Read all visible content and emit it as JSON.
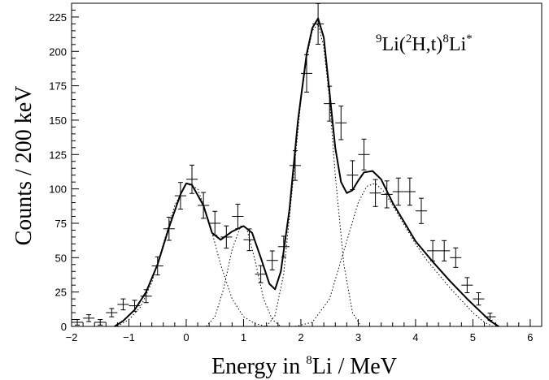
{
  "chart_data": {
    "type": "scatter",
    "xlabel": {
      "prefix": "Energy in ",
      "sup": "8",
      "suffix": "Li / MeV"
    },
    "ylabel": "Counts / 200 keV",
    "annotation": {
      "sup1": "9",
      "t1": "Li(",
      "sup2": "2",
      "t2": "H,t)",
      "sup3": "8",
      "t3": "Li",
      "sup4": "*"
    },
    "xlim": [
      -2,
      6.2
    ],
    "ylim": [
      0,
      235
    ],
    "xticks": [
      -2,
      -1,
      0,
      1,
      2,
      3,
      4,
      5,
      6
    ],
    "yticks": [
      0,
      25,
      50,
      75,
      100,
      125,
      150,
      175,
      200,
      225
    ],
    "grid": false,
    "series": [
      {
        "kind": "data-with-errorbars",
        "x": [
          -1.9,
          -1.7,
          -1.5,
          -1.3,
          -1.1,
          -0.9,
          -0.7,
          -0.5,
          -0.3,
          -0.1,
          0.1,
          0.3,
          0.5,
          0.7,
          0.9,
          1.1,
          1.3,
          1.5,
          1.7,
          1.9,
          2.1,
          2.3,
          2.5,
          2.7,
          2.9,
          3.1,
          3.3,
          3.5,
          3.7,
          3.9,
          4.1,
          4.3,
          4.5,
          4.7,
          4.9,
          5.1,
          5.3
        ],
        "y": [
          3,
          6,
          3,
          10,
          16,
          15,
          22,
          44,
          71,
          95,
          107,
          88,
          75,
          65,
          80,
          63,
          38,
          48,
          58,
          117,
          184,
          220,
          162,
          148,
          110,
          125,
          97,
          96,
          98,
          98,
          84,
          55,
          55,
          50,
          30,
          20,
          7
        ],
        "yerr": [
          2,
          2.5,
          2,
          3,
          4,
          4,
          4.7,
          6.6,
          8.4,
          9.7,
          10.3,
          9.4,
          8.7,
          8.1,
          8.9,
          7.9,
          6.2,
          6.9,
          7.6,
          10.8,
          13.6,
          14.8,
          12.7,
          12.2,
          10.5,
          11.2,
          9.8,
          9.8,
          9.9,
          9.9,
          9.2,
          7.4,
          7.4,
          7.1,
          5.5,
          4.5,
          2.6
        ],
        "xerr": 0.1
      },
      {
        "kind": "fit-total",
        "x": [
          -1.25,
          -1.1,
          -0.9,
          -0.7,
          -0.5,
          -0.3,
          -0.1,
          0.0,
          0.1,
          0.3,
          0.45,
          0.6,
          0.8,
          1.0,
          1.15,
          1.3,
          1.45,
          1.55,
          1.65,
          1.8,
          1.95,
          2.1,
          2.2,
          2.3,
          2.4,
          2.5,
          2.6,
          2.7,
          2.8,
          2.9,
          3.0,
          3.1,
          3.25,
          3.4,
          3.6,
          3.8,
          4.0,
          4.3,
          4.6,
          4.9,
          5.1,
          5.3,
          5.45
        ],
        "y": [
          0,
          4,
          12,
          25,
          45,
          72,
          96,
          104,
          103,
          88,
          68,
          63,
          69,
          73,
          68,
          50,
          31,
          27,
          40,
          85,
          150,
          198,
          217,
          224,
          210,
          170,
          130,
          105,
          97,
          99,
          106,
          112,
          113,
          107,
          90,
          76,
          62,
          47,
          33,
          20,
          12,
          4,
          0
        ]
      },
      {
        "kind": "fit-component",
        "x": [
          -1.2,
          -1.0,
          -0.8,
          -0.6,
          -0.4,
          -0.2,
          0.0,
          0.2,
          0.4,
          0.6,
          0.8,
          1.0,
          1.2,
          1.4
        ],
        "y": [
          0,
          5,
          14,
          32,
          60,
          88,
          104,
          100,
          76,
          45,
          20,
          7,
          2,
          0
        ]
      },
      {
        "kind": "fit-component",
        "x": [
          0.35,
          0.5,
          0.65,
          0.8,
          0.95,
          1.05,
          1.2,
          1.35,
          1.5,
          1.65
        ],
        "y": [
          0,
          7,
          27,
          56,
          73,
          72,
          48,
          20,
          5,
          0
        ]
      },
      {
        "kind": "fit-component",
        "x": [
          1.4,
          1.55,
          1.7,
          1.85,
          2.0,
          2.1,
          2.2,
          2.3,
          2.4,
          2.5,
          2.6,
          2.75,
          2.9,
          3.05
        ],
        "y": [
          0,
          8,
          38,
          100,
          165,
          195,
          215,
          220,
          203,
          165,
          110,
          45,
          10,
          0
        ]
      },
      {
        "kind": "fit-component",
        "x": [
          1.9,
          2.2,
          2.5,
          2.75,
          3.0,
          3.15,
          3.3,
          3.45,
          3.6,
          3.8,
          4.0,
          4.2,
          4.4,
          4.6,
          4.8,
          5.0,
          5.2,
          5.35
        ],
        "y": [
          0,
          3,
          20,
          55,
          90,
          102,
          104,
          98,
          88,
          74,
          60,
          48,
          38,
          28,
          19,
          10,
          3,
          0
        ]
      }
    ]
  }
}
